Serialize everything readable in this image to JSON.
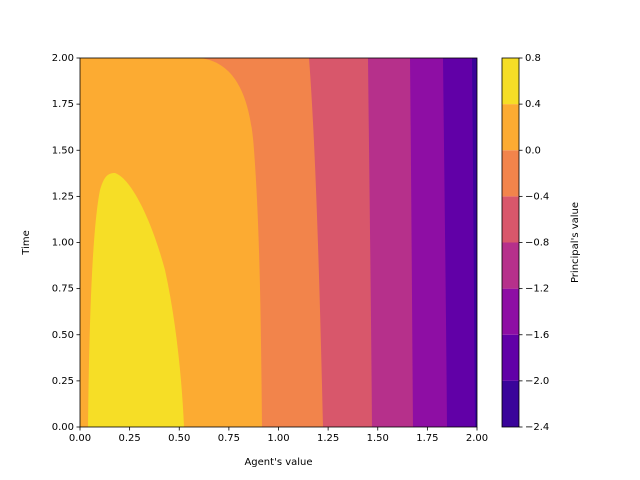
{
  "chart_data": {
    "type": "contourf",
    "xlabel": "Agent's value",
    "ylabel": "Time",
    "colorbar_label": "Principal's value",
    "xlim": [
      0,
      2
    ],
    "ylim": [
      0,
      2
    ],
    "xticks": [
      {
        "value": 0,
        "label": "0.00"
      },
      {
        "value": 0.25,
        "label": "0.25"
      },
      {
        "value": 0.5,
        "label": "0.50"
      },
      {
        "value": 0.75,
        "label": "0.75"
      },
      {
        "value": 1,
        "label": "1.00"
      },
      {
        "value": 1.25,
        "label": "1.25"
      },
      {
        "value": 1.5,
        "label": "1.50"
      },
      {
        "value": 1.75,
        "label": "1.75"
      },
      {
        "value": 2,
        "label": "2.00"
      }
    ],
    "yticks": [
      {
        "value": 0,
        "label": "0.00"
      },
      {
        "value": 0.25,
        "label": "0.25"
      },
      {
        "value": 0.5,
        "label": "0.50"
      },
      {
        "value": 0.75,
        "label": "0.75"
      },
      {
        "value": 1,
        "label": "1.00"
      },
      {
        "value": 1.25,
        "label": "1.25"
      },
      {
        "value": 1.5,
        "label": "1.50"
      },
      {
        "value": 1.75,
        "label": "1.75"
      },
      {
        "value": 2,
        "label": "2.00"
      }
    ],
    "levels": [
      {
        "value": -2.4,
        "label": "−2.4"
      },
      {
        "value": -2.0,
        "label": "−2.0"
      },
      {
        "value": -1.6,
        "label": "−1.6"
      },
      {
        "value": -1.2,
        "label": "−1.2"
      },
      {
        "value": -0.8,
        "label": "−0.8"
      },
      {
        "value": -0.4,
        "label": "−0.4"
      },
      {
        "value": 0,
        "label": "0.0"
      },
      {
        "value": 0.4,
        "label": "0.4"
      },
      {
        "value": 0.8,
        "label": "0.8"
      }
    ],
    "colors": [
      "#3a049a",
      "#6100a7",
      "#8e0ea4",
      "#b6308b",
      "#d8576b",
      "#f2844b",
      "#fcab32",
      "#f6de26"
    ]
  }
}
